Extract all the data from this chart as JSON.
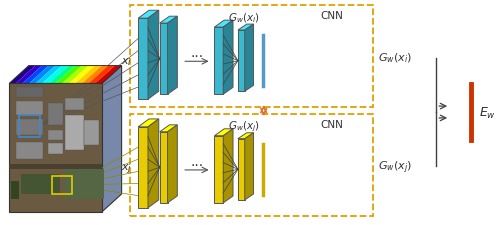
{
  "bg_color": "#ffffff",
  "cyan": "#3ab8d0",
  "cyan_dark": "#1a8898",
  "cyan_top": "#5dd0e8",
  "yellow": "#e8cc00",
  "yellow_dark": "#a89000",
  "yellow_top": "#f5e040",
  "orange_arrow": "#e07030",
  "orange_box": "#e0a800",
  "gray_line": "#555555",
  "bracket_color": "#404040",
  "red_bar": "#d04010",
  "blue_bar": "#5599cc",
  "yellow_bar_color": "#ccaa00",
  "text_color": "#333333"
}
